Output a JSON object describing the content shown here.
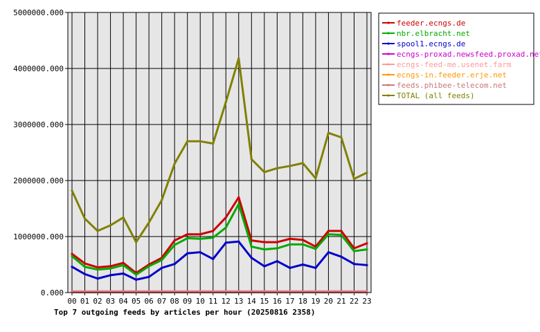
{
  "chart_data": {
    "type": "line",
    "title": "Top 7 outgoing feeds by articles per hour (20250816 2358)",
    "xlabel": "",
    "ylabel": "",
    "categories": [
      "00",
      "01",
      "02",
      "03",
      "04",
      "05",
      "06",
      "07",
      "08",
      "09",
      "10",
      "11",
      "12",
      "13",
      "14",
      "15",
      "16",
      "17",
      "18",
      "19",
      "20",
      "21",
      "22",
      "23"
    ],
    "ylim": [
      0,
      5000000
    ],
    "y_ticks": [
      "0.000",
      "1000000.000",
      "2000000.000",
      "3000000.000",
      "4000000.000",
      "5000000.000"
    ],
    "grid": true,
    "legend_position": "top-right",
    "series": [
      {
        "name": "feeder.ecngs.de",
        "color": "#cc0000",
        "values": [
          690000,
          520000,
          450000,
          470000,
          530000,
          350000,
          500000,
          620000,
          930000,
          1040000,
          1040000,
          1100000,
          1340000,
          1700000,
          930000,
          900000,
          900000,
          960000,
          940000,
          820000,
          1100000,
          1100000,
          790000,
          880000
        ]
      },
      {
        "name": "nbr.elbracht.net",
        "color": "#00aa00",
        "values": [
          650000,
          460000,
          410000,
          430000,
          490000,
          320000,
          470000,
          580000,
          850000,
          970000,
          960000,
          980000,
          1160000,
          1580000,
          820000,
          770000,
          790000,
          860000,
          860000,
          780000,
          1040000,
          1030000,
          740000,
          770000
        ]
      },
      {
        "name": "spool1.ecngs.de",
        "color": "#0000cc",
        "values": [
          460000,
          330000,
          250000,
          310000,
          340000,
          230000,
          280000,
          440000,
          510000,
          700000,
          720000,
          600000,
          890000,
          910000,
          620000,
          470000,
          560000,
          440000,
          500000,
          440000,
          720000,
          640000,
          510000,
          490000
        ]
      },
      {
        "name": "ecngs-proxad.newsfeed.proxad.net",
        "color": "#cc00cc",
        "values": [
          20000,
          20000,
          20000,
          20000,
          20000,
          20000,
          20000,
          20000,
          20000,
          20000,
          20000,
          20000,
          20000,
          20000,
          20000,
          20000,
          20000,
          20000,
          20000,
          20000,
          20000,
          20000,
          20000,
          20000
        ]
      },
      {
        "name": "ecngs-feed-me.usenet.farm",
        "color": "#ff9999",
        "values": [
          15000,
          15000,
          15000,
          15000,
          15000,
          15000,
          15000,
          15000,
          15000,
          15000,
          15000,
          15000,
          15000,
          15000,
          15000,
          15000,
          15000,
          15000,
          15000,
          15000,
          15000,
          15000,
          15000,
          15000
        ]
      },
      {
        "name": "ecngs-in.feeder.erje.net",
        "color": "#ff9900",
        "values": [
          10000,
          10000,
          10000,
          10000,
          10000,
          10000,
          10000,
          10000,
          10000,
          10000,
          10000,
          10000,
          10000,
          10000,
          10000,
          10000,
          10000,
          10000,
          10000,
          10000,
          10000,
          10000,
          10000,
          10000
        ]
      },
      {
        "name": "feeds.phibee-telecom.net",
        "color": "#cc7777",
        "values": [
          5000,
          5000,
          5000,
          5000,
          5000,
          5000,
          5000,
          5000,
          5000,
          5000,
          5000,
          5000,
          5000,
          5000,
          5000,
          5000,
          5000,
          5000,
          5000,
          5000,
          5000,
          5000,
          5000,
          5000
        ]
      },
      {
        "name": "TOTAL (all feeds)",
        "color": "#808000",
        "values": [
          1820000,
          1320000,
          1100000,
          1200000,
          1340000,
          900000,
          1250000,
          1650000,
          2300000,
          2700000,
          2700000,
          2660000,
          3400000,
          4180000,
          2380000,
          2150000,
          2220000,
          2260000,
          2310000,
          2040000,
          2850000,
          2770000,
          2030000,
          2140000
        ]
      }
    ]
  }
}
